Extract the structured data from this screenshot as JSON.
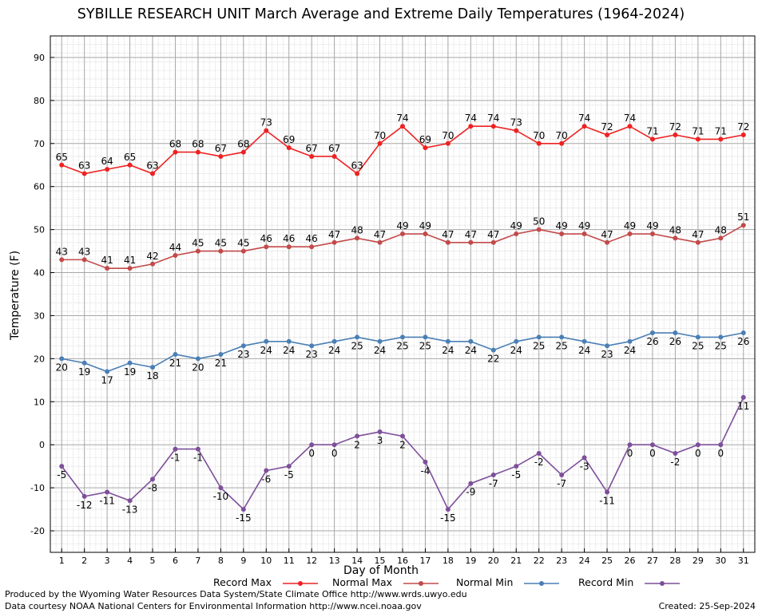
{
  "chart_data": {
    "type": "line",
    "title": "SYBILLE RESEARCH UNIT March Average and Extreme Daily Temperatures (1964-2024)",
    "xlabel": "Day of Month",
    "ylabel": "Temperature (F)",
    "x": [
      1,
      2,
      3,
      4,
      5,
      6,
      7,
      8,
      9,
      10,
      11,
      12,
      13,
      14,
      15,
      16,
      17,
      18,
      19,
      20,
      21,
      22,
      23,
      24,
      25,
      26,
      27,
      28,
      29,
      30,
      31
    ],
    "ylim": [
      -25,
      95
    ],
    "yticks": [
      -20,
      -10,
      0,
      10,
      20,
      30,
      40,
      50,
      60,
      70,
      80,
      90
    ],
    "grid": true,
    "legend_position": "bottom",
    "series": [
      {
        "name": "Record Max",
        "color": "#ee2222",
        "label_position": "above",
        "values": [
          65,
          63,
          64,
          65,
          63,
          68,
          68,
          67,
          68,
          73,
          69,
          67,
          67,
          63,
          70,
          74,
          69,
          70,
          74,
          74,
          73,
          70,
          70,
          74,
          72,
          74,
          71,
          72,
          71,
          71,
          72
        ]
      },
      {
        "name": "Normal Max",
        "color": "#c24a4a",
        "label_position": "above",
        "values": [
          43,
          43,
          41,
          41,
          42,
          44,
          45,
          45,
          45,
          46,
          46,
          46,
          47,
          48,
          47,
          49,
          49,
          47,
          47,
          47,
          49,
          50,
          49,
          49,
          47,
          49,
          49,
          48,
          47,
          48,
          51
        ]
      },
      {
        "name": "Normal Min",
        "color": "#4a7fb5",
        "label_position": "below",
        "values": [
          20,
          19,
          17,
          19,
          18,
          21,
          20,
          21,
          23,
          24,
          24,
          23,
          24,
          25,
          24,
          25,
          25,
          24,
          24,
          22,
          24,
          25,
          25,
          24,
          23,
          24,
          26,
          26,
          25,
          25,
          26
        ]
      },
      {
        "name": "Record Min",
        "color": "#7d4f9a",
        "label_position": "below",
        "values": [
          -5,
          -12,
          -11,
          -13,
          -8,
          -1,
          -1,
          -10,
          -15,
          -6,
          -5,
          0,
          0,
          2,
          3,
          2,
          -4,
          -15,
          -9,
          -7,
          -5,
          -2,
          -7,
          -3,
          -11,
          0,
          0,
          -2,
          0,
          0,
          11
        ]
      }
    ]
  },
  "footer": {
    "produced_by": "Produced by the Wyoming Water Resources Data System/State Climate Office http://www.wrds.uwyo.edu",
    "courtesy": "Data courtesy NOAA National Centers for Environmental Information http://www.ncei.noaa.gov",
    "created": "Created:  25-Sep-2024"
  }
}
